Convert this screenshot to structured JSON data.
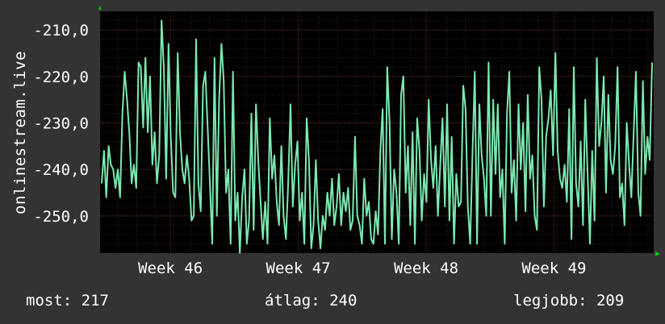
{
  "ylabel": "onlinestream.live",
  "footer": {
    "now_label": "most:",
    "now_value": "217",
    "avg_label": "átlag:",
    "avg_value": "240",
    "best_label": "legjobb:",
    "best_value": "209"
  },
  "colors": {
    "background": "#333333",
    "plot_background": "#000000",
    "line": "#7be8b0",
    "grid": "#5a2a2a",
    "arrow": "#00cc00"
  },
  "chart_data": {
    "type": "line",
    "title": "",
    "xlabel": "",
    "ylabel": "onlinestream.live",
    "ylim": [
      -258,
      -206
    ],
    "yticks": [
      -210,
      -220,
      -230,
      -240,
      -250
    ],
    "ytick_labels": [
      "-210,0",
      "-220,0",
      "-230,0",
      "-240,0",
      "-250,0"
    ],
    "xtick_labels": [
      "Week 46",
      "Week 47",
      "Week 48",
      "Week 49"
    ],
    "xlim": [
      0,
      4.33
    ],
    "xticks": [
      0.55,
      1.55,
      2.55,
      3.55
    ],
    "grid": true,
    "series": [
      {
        "values": [
          -243,
          -236,
          -246,
          -235,
          -239,
          -240,
          -244,
          -240,
          -246,
          -228,
          -219,
          -225,
          -232,
          -243,
          -239,
          -244,
          -217,
          -218,
          -231,
          -216,
          -232,
          -220,
          -239,
          -232,
          -243,
          -237,
          -208,
          -218,
          -242,
          -213,
          -233,
          -245,
          -246,
          -215,
          -232,
          -240,
          -243,
          -237,
          -242,
          -251,
          -250,
          -212,
          -243,
          -249,
          -222,
          -219,
          -231,
          -243,
          -256,
          -216,
          -250,
          -225,
          -213,
          -221,
          -245,
          -240,
          -256,
          -219,
          -251,
          -245,
          -258,
          -246,
          -240,
          -256,
          -251,
          -228,
          -253,
          -226,
          -238,
          -247,
          -255,
          -247,
          -256,
          -229,
          -242,
          -237,
          -247,
          -252,
          -235,
          -250,
          -255,
          -243,
          -226,
          -248,
          -239,
          -234,
          -251,
          -245,
          -256,
          -229,
          -238,
          -257,
          -252,
          -238,
          -251,
          -257,
          -250,
          -253,
          -245,
          -250,
          -242,
          -252,
          -248,
          -241,
          -252,
          -245,
          -249,
          -244,
          -253,
          -251,
          -233,
          -250,
          -252,
          -256,
          -242,
          -250,
          -247,
          -255,
          -256,
          -249,
          -254,
          -236,
          -227,
          -256,
          -218,
          -230,
          -255,
          -240,
          -245,
          -256,
          -224,
          -220,
          -245,
          -235,
          -252,
          -232,
          -256,
          -229,
          -236,
          -251,
          -241,
          -247,
          -225,
          -238,
          -244,
          -235,
          -250,
          -239,
          -229,
          -248,
          -226,
          -251,
          -233,
          -256,
          -241,
          -248,
          -247,
          -222,
          -227,
          -248,
          -256,
          -237,
          -219,
          -256,
          -226,
          -237,
          -242,
          -250,
          -217,
          -250,
          -225,
          -241,
          -226,
          -246,
          -240,
          -256,
          -228,
          -219,
          -245,
          -238,
          -251,
          -226,
          -240,
          -230,
          -249,
          -224,
          -242,
          -237,
          -250,
          -253,
          -218,
          -225,
          -248,
          -233,
          -229,
          -223,
          -237,
          -215,
          -236,
          -242,
          -244,
          -239,
          -247,
          -227,
          -255,
          -218,
          -243,
          -248,
          -234,
          -252,
          -225,
          -241,
          -256,
          -236,
          -251,
          -216,
          -235,
          -230,
          -220,
          -245,
          -224,
          -238,
          -241,
          -235,
          -218,
          -246,
          -243,
          -252,
          -230,
          -239,
          -246,
          -232,
          -219,
          -245,
          -250,
          -221,
          -241,
          -233,
          -238,
          -217
        ]
      }
    ]
  }
}
